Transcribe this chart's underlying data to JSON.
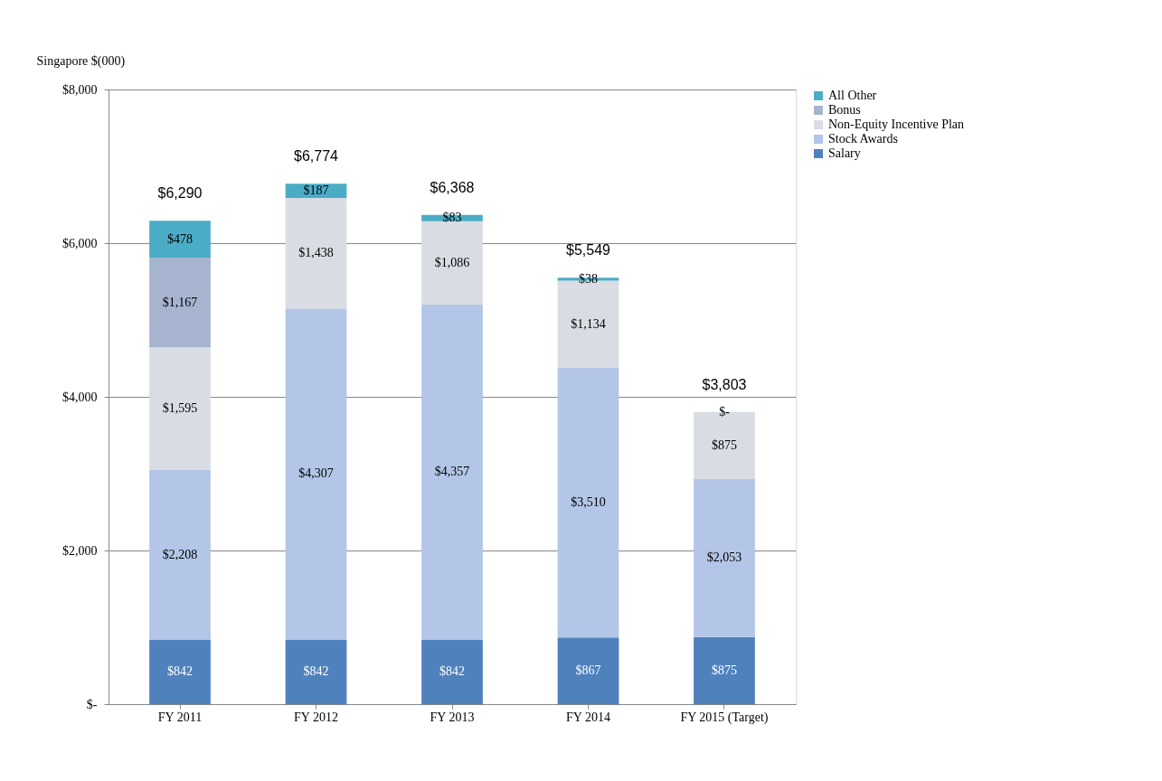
{
  "chart_data": {
    "type": "bar",
    "stacked": true,
    "ylabel": "Singapore $(000)",
    "categories": [
      "FY 2011",
      "FY 2012",
      "FY 2013",
      "FY 2014",
      "FY 2015 (Target)"
    ],
    "series": [
      {
        "name": "Salary",
        "color": "#4f81bd",
        "values": [
          842,
          842,
          842,
          867,
          875
        ],
        "value_labels": [
          "$842",
          "$842",
          "$842",
          "$867",
          "$875"
        ]
      },
      {
        "name": "Stock Awards",
        "color": "#b3c6e7",
        "values": [
          2208,
          4307,
          4357,
          3510,
          2053
        ],
        "value_labels": [
          "$2,208",
          "$4,307",
          "$4,357",
          "$3,510",
          "$2,053"
        ]
      },
      {
        "name": "Non-Equity Incentive Plan",
        "color": "#d9dde3",
        "values": [
          1595,
          1438,
          1086,
          1134,
          875
        ],
        "value_labels": [
          "$1,595",
          "$1,438",
          "$1,086",
          "$1,134",
          "$875"
        ]
      },
      {
        "name": "Bonus",
        "color": "#a7b4cf",
        "values": [
          1167,
          0,
          0,
          0,
          0
        ],
        "value_labels": [
          "$1,167",
          null,
          null,
          null,
          null
        ]
      },
      {
        "name": "All Other",
        "color": "#4bacc6",
        "values": [
          478,
          187,
          83,
          38,
          0
        ],
        "value_labels": [
          "$478",
          "$187",
          "$83",
          "$38",
          "$-"
        ]
      }
    ],
    "totals": [
      "$6,290",
      "$6,774",
      "$6,368",
      "$5,549",
      "$3,803"
    ],
    "ylim": [
      0,
      8000
    ],
    "yticks": [
      {
        "value": 0,
        "label": "$-"
      },
      {
        "value": 2000,
        "label": "$2,000"
      },
      {
        "value": 4000,
        "label": "$4,000"
      },
      {
        "value": 6000,
        "label": "$6,000"
      },
      {
        "value": 8000,
        "label": "$8,000"
      }
    ],
    "grid": "y",
    "legend": "right"
  }
}
